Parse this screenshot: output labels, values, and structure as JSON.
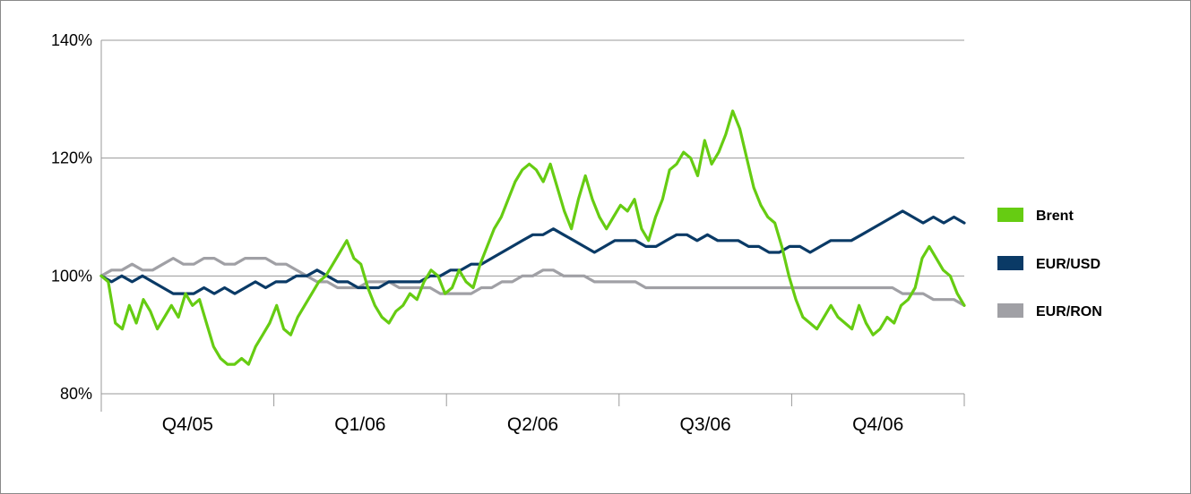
{
  "chart_data": {
    "type": "line",
    "title": "",
    "xlabel": "",
    "ylabel": "",
    "x_ticks": [
      "Q4/05",
      "Q1/06",
      "Q2/06",
      "Q3/06",
      "Q4/06"
    ],
    "y_ticks": [
      "80%",
      "100%",
      "120%",
      "140%"
    ],
    "ylim": [
      80,
      140
    ],
    "grid": "horizontal",
    "legend_position": "right",
    "series": [
      {
        "name": "Brent",
        "color": "#66cc12",
        "values": [
          100,
          99,
          92,
          91,
          95,
          92,
          96,
          94,
          91,
          93,
          95,
          93,
          97,
          95,
          96,
          92,
          88,
          86,
          85,
          85,
          86,
          85,
          88,
          90,
          92,
          95,
          91,
          90,
          93,
          95,
          97,
          99,
          100,
          102,
          104,
          106,
          103,
          102,
          98,
          95,
          93,
          92,
          94,
          95,
          97,
          96,
          99,
          101,
          100,
          97,
          98,
          101,
          99,
          98,
          102,
          105,
          108,
          110,
          113,
          116,
          118,
          119,
          118,
          116,
          119,
          115,
          111,
          108,
          113,
          117,
          113,
          110,
          108,
          110,
          112,
          111,
          113,
          108,
          106,
          110,
          113,
          118,
          119,
          121,
          120,
          117,
          123,
          119,
          121,
          124,
          128,
          125,
          120,
          115,
          112,
          110,
          109,
          105,
          100,
          96,
          93,
          92,
          91,
          93,
          95,
          93,
          92,
          91,
          95,
          92,
          90,
          91,
          93,
          92,
          95,
          96,
          98,
          103,
          105,
          103,
          101,
          100,
          97,
          95
        ]
      },
      {
        "name": "EUR/USD",
        "color": "#0a3a66",
        "values": [
          100,
          99,
          100,
          99,
          100,
          99,
          98,
          97,
          97,
          97,
          98,
          97,
          98,
          97,
          98,
          99,
          98,
          99,
          99,
          100,
          100,
          101,
          100,
          99,
          99,
          98,
          98,
          98,
          99,
          99,
          99,
          99,
          100,
          100,
          101,
          101,
          102,
          102,
          103,
          104,
          105,
          106,
          107,
          107,
          108,
          107,
          106,
          105,
          104,
          105,
          106,
          106,
          106,
          105,
          105,
          106,
          107,
          107,
          106,
          107,
          106,
          106,
          106,
          105,
          105,
          104,
          104,
          105,
          105,
          104,
          105,
          106,
          106,
          106,
          107,
          108,
          109,
          110,
          111,
          110,
          109,
          110,
          109,
          110,
          109
        ]
      },
      {
        "name": "EUR/RON",
        "color": "#a0a0a5",
        "values": [
          100,
          101,
          101,
          102,
          101,
          101,
          102,
          103,
          102,
          102,
          103,
          103,
          102,
          102,
          103,
          103,
          103,
          102,
          102,
          101,
          100,
          99,
          99,
          98,
          98,
          98,
          99,
          99,
          99,
          98,
          98,
          98,
          98,
          97,
          97,
          97,
          97,
          98,
          98,
          99,
          99,
          100,
          100,
          101,
          101,
          100,
          100,
          100,
          99,
          99,
          99,
          99,
          99,
          98,
          98,
          98,
          98,
          98,
          98,
          98,
          98,
          98,
          98,
          98,
          98,
          98,
          98,
          98,
          98,
          98,
          98,
          98,
          98,
          98,
          98,
          98,
          98,
          98,
          97,
          97,
          97,
          96,
          96,
          96,
          95
        ]
      }
    ]
  }
}
